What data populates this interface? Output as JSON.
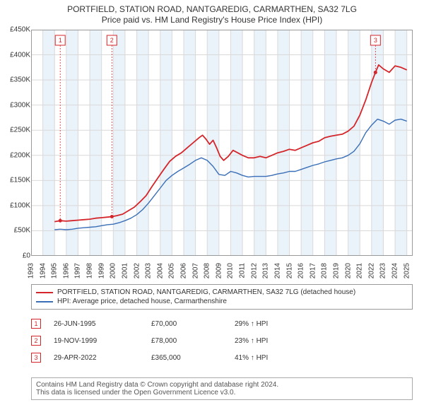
{
  "title_line1": "PORTFIELD, STATION ROAD, NANTGAREDIG, CARMARTHEN, SA32 7LG",
  "title_line2": "Price paid vs. HM Land Registry's House Price Index (HPI)",
  "chart": {
    "type": "line",
    "x_min": 1993,
    "x_max": 2025.5,
    "y_min": 0,
    "y_max": 450000,
    "y_ticks": [
      0,
      50000,
      100000,
      150000,
      200000,
      250000,
      300000,
      350000,
      400000,
      450000
    ],
    "y_tick_labels": [
      "£0",
      "£50K",
      "£100K",
      "£150K",
      "£200K",
      "£250K",
      "£300K",
      "£350K",
      "£400K",
      "£450K"
    ],
    "x_ticks": [
      1993,
      1994,
      1995,
      1996,
      1997,
      1998,
      1999,
      2000,
      2001,
      2002,
      2003,
      2004,
      2005,
      2006,
      2007,
      2008,
      2009,
      2010,
      2011,
      2012,
      2013,
      2014,
      2015,
      2016,
      2017,
      2018,
      2019,
      2020,
      2021,
      2022,
      2023,
      2024,
      2025
    ],
    "alt_fill_color": "#eaf2fa",
    "grid_color": "#d9d9d9",
    "border_color": "#999999",
    "plot_bg": "#ffffff",
    "series": [
      {
        "name": "subject",
        "color": "#d4262a",
        "width": 1.8,
        "points": [
          [
            1995.0,
            68000
          ],
          [
            1995.48,
            70000
          ],
          [
            1996.0,
            69000
          ],
          [
            1996.5,
            70000
          ],
          [
            1997.0,
            71000
          ],
          [
            1997.5,
            72000
          ],
          [
            1998.0,
            73000
          ],
          [
            1998.5,
            75000
          ],
          [
            1999.0,
            76000
          ],
          [
            1999.5,
            77000
          ],
          [
            1999.88,
            78000
          ],
          [
            2000.3,
            80000
          ],
          [
            2000.8,
            83000
          ],
          [
            2001.3,
            90000
          ],
          [
            2001.8,
            97000
          ],
          [
            2002.3,
            108000
          ],
          [
            2002.8,
            120000
          ],
          [
            2003.3,
            138000
          ],
          [
            2003.8,
            155000
          ],
          [
            2004.3,
            172000
          ],
          [
            2004.8,
            188000
          ],
          [
            2005.3,
            198000
          ],
          [
            2005.8,
            205000
          ],
          [
            2006.3,
            215000
          ],
          [
            2006.8,
            225000
          ],
          [
            2007.3,
            235000
          ],
          [
            2007.6,
            240000
          ],
          [
            2007.9,
            232000
          ],
          [
            2008.2,
            222000
          ],
          [
            2008.5,
            230000
          ],
          [
            2008.8,
            215000
          ],
          [
            2009.1,
            198000
          ],
          [
            2009.4,
            190000
          ],
          [
            2009.8,
            198000
          ],
          [
            2010.2,
            210000
          ],
          [
            2010.6,
            205000
          ],
          [
            2011.0,
            200000
          ],
          [
            2011.5,
            195000
          ],
          [
            2012.0,
            195000
          ],
          [
            2012.5,
            198000
          ],
          [
            2013.0,
            195000
          ],
          [
            2013.5,
            200000
          ],
          [
            2014.0,
            205000
          ],
          [
            2014.5,
            208000
          ],
          [
            2015.0,
            212000
          ],
          [
            2015.5,
            210000
          ],
          [
            2016.0,
            215000
          ],
          [
            2016.5,
            220000
          ],
          [
            2017.0,
            225000
          ],
          [
            2017.5,
            228000
          ],
          [
            2018.0,
            235000
          ],
          [
            2018.5,
            238000
          ],
          [
            2019.0,
            240000
          ],
          [
            2019.5,
            242000
          ],
          [
            2020.0,
            248000
          ],
          [
            2020.5,
            258000
          ],
          [
            2021.0,
            280000
          ],
          [
            2021.5,
            310000
          ],
          [
            2022.0,
            345000
          ],
          [
            2022.33,
            365000
          ],
          [
            2022.6,
            380000
          ],
          [
            2023.0,
            372000
          ],
          [
            2023.5,
            365000
          ],
          [
            2024.0,
            378000
          ],
          [
            2024.5,
            375000
          ],
          [
            2025.0,
            370000
          ]
        ]
      },
      {
        "name": "hpi",
        "color": "#3a6fb7",
        "width": 1.4,
        "points": [
          [
            1995.0,
            52000
          ],
          [
            1995.5,
            53000
          ],
          [
            1996.0,
            52000
          ],
          [
            1996.5,
            53000
          ],
          [
            1997.0,
            55000
          ],
          [
            1997.5,
            56000
          ],
          [
            1998.0,
            57000
          ],
          [
            1998.5,
            58000
          ],
          [
            1999.0,
            60000
          ],
          [
            1999.5,
            62000
          ],
          [
            2000.0,
            63000
          ],
          [
            2000.5,
            66000
          ],
          [
            2001.0,
            70000
          ],
          [
            2001.5,
            75000
          ],
          [
            2002.0,
            82000
          ],
          [
            2002.5,
            92000
          ],
          [
            2003.0,
            105000
          ],
          [
            2003.5,
            120000
          ],
          [
            2004.0,
            135000
          ],
          [
            2004.5,
            150000
          ],
          [
            2005.0,
            160000
          ],
          [
            2005.5,
            168000
          ],
          [
            2006.0,
            175000
          ],
          [
            2006.5,
            182000
          ],
          [
            2007.0,
            190000
          ],
          [
            2007.5,
            195000
          ],
          [
            2008.0,
            190000
          ],
          [
            2008.5,
            178000
          ],
          [
            2009.0,
            162000
          ],
          [
            2009.5,
            160000
          ],
          [
            2010.0,
            168000
          ],
          [
            2010.5,
            165000
          ],
          [
            2011.0,
            160000
          ],
          [
            2011.5,
            157000
          ],
          [
            2012.0,
            158000
          ],
          [
            2012.5,
            158000
          ],
          [
            2013.0,
            158000
          ],
          [
            2013.5,
            160000
          ],
          [
            2014.0,
            163000
          ],
          [
            2014.5,
            165000
          ],
          [
            2015.0,
            168000
          ],
          [
            2015.5,
            168000
          ],
          [
            2016.0,
            172000
          ],
          [
            2016.5,
            176000
          ],
          [
            2017.0,
            180000
          ],
          [
            2017.5,
            183000
          ],
          [
            2018.0,
            187000
          ],
          [
            2018.5,
            190000
          ],
          [
            2019.0,
            193000
          ],
          [
            2019.5,
            195000
          ],
          [
            2020.0,
            200000
          ],
          [
            2020.5,
            208000
          ],
          [
            2021.0,
            223000
          ],
          [
            2021.5,
            245000
          ],
          [
            2022.0,
            260000
          ],
          [
            2022.5,
            272000
          ],
          [
            2023.0,
            268000
          ],
          [
            2023.5,
            262000
          ],
          [
            2024.0,
            270000
          ],
          [
            2024.5,
            272000
          ],
          [
            2025.0,
            268000
          ]
        ]
      }
    ],
    "markers": [
      {
        "n": 1,
        "x": 1995.48,
        "box_color": "#d4262a"
      },
      {
        "n": 2,
        "x": 1999.88,
        "box_color": "#d4262a"
      },
      {
        "n": 3,
        "x": 2022.33,
        "box_color": "#d4262a"
      }
    ]
  },
  "legend": {
    "items": [
      {
        "color": "#d4262a",
        "label": "PORTFIELD, STATION ROAD, NANTGAREDIG, CARMARTHEN, SA32 7LG (detached house)"
      },
      {
        "color": "#3a6fb7",
        "label": "HPI: Average price, detached house, Carmarthenshire"
      }
    ]
  },
  "transactions": [
    {
      "n": "1",
      "date": "26-JUN-1995",
      "price": "£70,000",
      "hpi": "29% ↑ HPI",
      "color": "#d4262a"
    },
    {
      "n": "2",
      "date": "19-NOV-1999",
      "price": "£78,000",
      "hpi": "23% ↑ HPI",
      "color": "#d4262a"
    },
    {
      "n": "3",
      "date": "29-APR-2022",
      "price": "£365,000",
      "hpi": "41% ↑ HPI",
      "color": "#d4262a"
    }
  ],
  "footer": {
    "line1": "Contains HM Land Registry data © Crown copyright and database right 2024.",
    "line2": "This data is licensed under the Open Government Licence v3.0."
  }
}
